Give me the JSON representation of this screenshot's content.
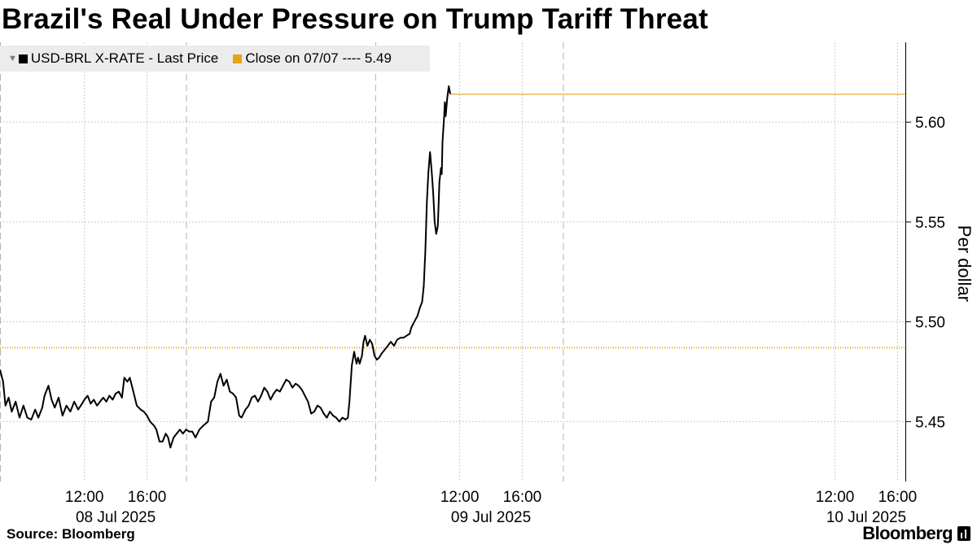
{
  "header": {
    "title": "Brazil's Real Under Pressure on Trump Tariff Threat"
  },
  "legend": {
    "items": [
      {
        "label": "USD-BRL X-RATE - Last Price",
        "color": "#000000"
      },
      {
        "label": "Close on 07/07 ---- 5.49",
        "color": "#e8a317"
      }
    ]
  },
  "footer": {
    "source": "Source: Bloomberg",
    "brand": "Bloomberg"
  },
  "chart_data": {
    "type": "line",
    "title": "Brazil's Real Under Pressure on Trump Tariff Threat",
    "ylabel": "Per dollar",
    "xlabel": "",
    "ylim": [
      5.42,
      5.64
    ],
    "yticks": [
      5.45,
      5.5,
      5.55,
      5.6
    ],
    "x_unit": "hours from 00:00 on 08 Jul 2025",
    "xlim": [
      6.6,
      64.5
    ],
    "xticks": [
      {
        "x": 12,
        "label": "12:00"
      },
      {
        "x": 16,
        "label": "16:00"
      },
      {
        "x": 36,
        "label": "12:00"
      },
      {
        "x": 40,
        "label": "16:00"
      },
      {
        "x": 60,
        "label": "12:00"
      },
      {
        "x": 64,
        "label": "16:00"
      }
    ],
    "day_labels": [
      {
        "x": 14,
        "label": "08 Jul 2025"
      },
      {
        "x": 38,
        "label": "09 Jul 2025"
      },
      {
        "x": 62,
        "label": "10 Jul 2025"
      }
    ],
    "session_breaks": [
      6.6,
      18.5,
      30.6,
      42.6
    ],
    "reference_line": {
      "name": "Close on 07/07",
      "value": 5.487,
      "color": "#e8a317",
      "style": "dotted"
    },
    "series": [
      {
        "name": "USD-BRL X-RATE - Last Price",
        "color": "#000000",
        "points": [
          [
            6.6,
            5.476
          ],
          [
            6.8,
            5.47
          ],
          [
            6.95,
            5.458
          ],
          [
            7.15,
            5.462
          ],
          [
            7.35,
            5.455
          ],
          [
            7.6,
            5.46
          ],
          [
            7.85,
            5.452
          ],
          [
            8.1,
            5.458
          ],
          [
            8.35,
            5.452
          ],
          [
            8.6,
            5.451
          ],
          [
            8.85,
            5.456
          ],
          [
            9.05,
            5.452
          ],
          [
            9.3,
            5.457
          ],
          [
            9.45,
            5.463
          ],
          [
            9.7,
            5.468
          ],
          [
            9.9,
            5.461
          ],
          [
            10.1,
            5.457
          ],
          [
            10.35,
            5.462
          ],
          [
            10.6,
            5.453
          ],
          [
            10.85,
            5.458
          ],
          [
            11.1,
            5.455
          ],
          [
            11.35,
            5.46
          ],
          [
            11.6,
            5.456
          ],
          [
            11.85,
            5.459
          ],
          [
            12.0,
            5.461
          ],
          [
            12.2,
            5.463
          ],
          [
            12.4,
            5.459
          ],
          [
            12.6,
            5.461
          ],
          [
            12.8,
            5.458
          ],
          [
            13.0,
            5.46
          ],
          [
            13.2,
            5.462
          ],
          [
            13.4,
            5.46
          ],
          [
            13.6,
            5.463
          ],
          [
            13.8,
            5.461
          ],
          [
            14.0,
            5.464
          ],
          [
            14.2,
            5.465
          ],
          [
            14.4,
            5.462
          ],
          [
            14.55,
            5.472
          ],
          [
            14.75,
            5.47
          ],
          [
            14.9,
            5.472
          ],
          [
            15.1,
            5.466
          ],
          [
            15.35,
            5.458
          ],
          [
            15.6,
            5.456
          ],
          [
            15.8,
            5.455
          ],
          [
            16.0,
            5.453
          ],
          [
            16.2,
            5.45
          ],
          [
            16.45,
            5.448
          ],
          [
            16.6,
            5.446
          ],
          [
            16.8,
            5.44
          ],
          [
            17.0,
            5.44
          ],
          [
            17.2,
            5.444
          ],
          [
            17.35,
            5.442
          ],
          [
            17.5,
            5.437
          ],
          [
            17.7,
            5.442
          ],
          [
            17.9,
            5.444
          ],
          [
            18.1,
            5.446
          ],
          [
            18.3,
            5.444
          ],
          [
            18.5,
            5.446
          ],
          [
            18.7,
            5.445
          ],
          [
            18.9,
            5.445
          ],
          [
            19.1,
            5.442
          ],
          [
            19.35,
            5.446
          ],
          [
            19.6,
            5.448
          ],
          [
            19.9,
            5.45
          ],
          [
            20.1,
            5.46
          ],
          [
            20.3,
            5.462
          ],
          [
            20.5,
            5.47
          ],
          [
            20.7,
            5.474
          ],
          [
            20.9,
            5.468
          ],
          [
            21.1,
            5.471
          ],
          [
            21.3,
            5.465
          ],
          [
            21.5,
            5.464
          ],
          [
            21.7,
            5.462
          ],
          [
            21.9,
            5.453
          ],
          [
            22.05,
            5.452
          ],
          [
            22.3,
            5.456
          ],
          [
            22.5,
            5.458
          ],
          [
            22.7,
            5.462
          ],
          [
            22.9,
            5.463
          ],
          [
            23.1,
            5.46
          ],
          [
            23.3,
            5.463
          ],
          [
            23.5,
            5.467
          ],
          [
            23.7,
            5.465
          ],
          [
            23.9,
            5.461
          ],
          [
            24.1,
            5.464
          ],
          [
            24.3,
            5.466
          ],
          [
            24.5,
            5.465
          ],
          [
            24.7,
            5.468
          ],
          [
            24.9,
            5.471
          ],
          [
            25.1,
            5.47
          ],
          [
            25.3,
            5.467
          ],
          [
            25.5,
            5.469
          ],
          [
            25.7,
            5.468
          ],
          [
            25.9,
            5.466
          ],
          [
            26.1,
            5.463
          ],
          [
            26.3,
            5.46
          ],
          [
            26.5,
            5.454
          ],
          [
            26.7,
            5.455
          ],
          [
            26.9,
            5.458
          ],
          [
            27.1,
            5.457
          ],
          [
            27.3,
            5.454
          ],
          [
            27.5,
            5.452
          ],
          [
            27.7,
            5.455
          ],
          [
            27.9,
            5.453
          ],
          [
            28.1,
            5.452
          ],
          [
            28.3,
            5.45
          ],
          [
            28.5,
            5.452
          ],
          [
            28.7,
            5.451
          ],
          [
            28.85,
            5.452
          ],
          [
            28.95,
            5.46
          ],
          [
            29.1,
            5.478
          ],
          [
            29.25,
            5.485
          ],
          [
            29.4,
            5.479
          ],
          [
            29.5,
            5.482
          ],
          [
            29.6,
            5.479
          ],
          [
            29.75,
            5.483
          ],
          [
            29.85,
            5.49
          ],
          [
            29.95,
            5.493
          ],
          [
            30.1,
            5.488
          ],
          [
            30.25,
            5.491
          ],
          [
            30.4,
            5.489
          ],
          [
            30.55,
            5.483
          ],
          [
            30.7,
            5.481
          ],
          [
            30.85,
            5.482
          ],
          [
            31.0,
            5.484
          ],
          [
            31.2,
            5.486
          ],
          [
            31.4,
            5.488
          ],
          [
            31.6,
            5.49
          ],
          [
            31.8,
            5.488
          ],
          [
            32.0,
            5.491
          ],
          [
            32.2,
            5.492
          ],
          [
            32.4,
            5.492
          ],
          [
            32.6,
            5.493
          ],
          [
            32.8,
            5.494
          ],
          [
            32.9,
            5.497
          ],
          [
            33.1,
            5.5
          ],
          [
            33.3,
            5.503
          ],
          [
            33.45,
            5.507
          ],
          [
            33.6,
            5.51
          ],
          [
            33.7,
            5.518
          ],
          [
            33.8,
            5.535
          ],
          [
            33.9,
            5.56
          ],
          [
            34.0,
            5.575
          ],
          [
            34.1,
            5.585
          ],
          [
            34.2,
            5.576
          ],
          [
            34.3,
            5.565
          ],
          [
            34.4,
            5.55
          ],
          [
            34.5,
            5.544
          ],
          [
            34.6,
            5.548
          ],
          [
            34.7,
            5.57
          ],
          [
            34.8,
            5.577
          ],
          [
            34.85,
            5.574
          ],
          [
            34.9,
            5.59
          ],
          [
            35.0,
            5.602
          ],
          [
            35.05,
            5.61
          ],
          [
            35.1,
            5.603
          ],
          [
            35.2,
            5.612
          ],
          [
            35.3,
            5.618
          ],
          [
            35.4,
            5.614
          ]
        ]
      }
    ]
  }
}
